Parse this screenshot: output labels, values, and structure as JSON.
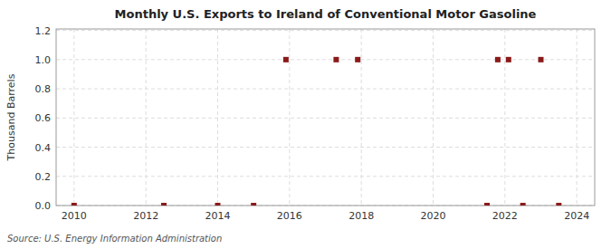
{
  "chart_data": {
    "type": "scatter",
    "title": "Monthly U.S. Exports to Ireland of Conventional Motor Gasoline",
    "y_label": "Thousand Barrels",
    "source": "Source: U.S. Energy Information Administration",
    "series": [
      {
        "color": "#8b1a1a",
        "marker": "square",
        "x": [
          2010.0,
          2012.5,
          2014.0,
          2015.0,
          2021.5,
          2022.5,
          2023.5
        ],
        "values": [
          0.0,
          0.0,
          0.0,
          0.0,
          0.0,
          0.0,
          0.0
        ]
      },
      {
        "color": "#8b1a1a",
        "marker": "square",
        "x": [
          2015.9,
          2017.3,
          2017.9,
          2021.8,
          2022.1,
          2023.0
        ],
        "values": [
          1.0,
          1.0,
          1.0,
          1.0,
          1.0,
          1.0
        ]
      }
    ],
    "xlim": [
      2009.5,
      2024.5
    ],
    "ylim": [
      0.0,
      1.21
    ],
    "xticks": [
      2010,
      2012,
      2014,
      2016,
      2018,
      2020,
      2022,
      2024
    ],
    "yticks": [
      {
        "value": 0.0,
        "label": "0.0"
      },
      0.2,
      0.4,
      0.6,
      0.8,
      {
        "value": 1.0,
        "label": "1.0"
      },
      1.2
    ],
    "grid": true
  }
}
